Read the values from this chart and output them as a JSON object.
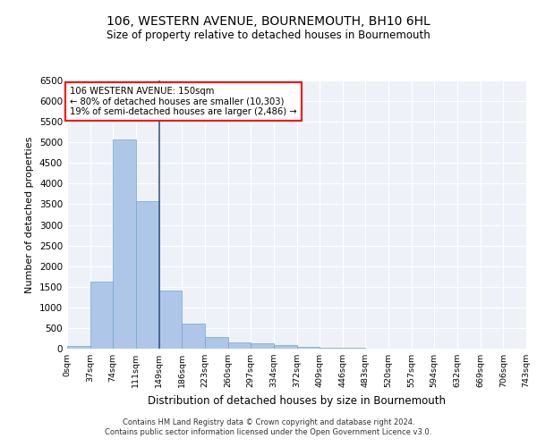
{
  "title": "106, WESTERN AVENUE, BOURNEMOUTH, BH10 6HL",
  "subtitle": "Size of property relative to detached houses in Bournemouth",
  "xlabel": "Distribution of detached houses by size in Bournemouth",
  "ylabel": "Number of detached properties",
  "bar_values": [
    60,
    1620,
    5080,
    3580,
    1400,
    600,
    290,
    150,
    120,
    90,
    50,
    30,
    20,
    5,
    2,
    1,
    0,
    0,
    0,
    0
  ],
  "bin_edges": [
    0,
    37,
    74,
    111,
    149,
    186,
    223,
    260,
    297,
    334,
    372,
    409,
    446,
    483,
    520,
    557,
    594,
    632,
    669,
    706,
    743
  ],
  "xtick_labels": [
    "0sqm",
    "37sqm",
    "74sqm",
    "111sqm",
    "149sqm",
    "186sqm",
    "223sqm",
    "260sqm",
    "297sqm",
    "334sqm",
    "372sqm",
    "409sqm",
    "446sqm",
    "483sqm",
    "520sqm",
    "557sqm",
    "594sqm",
    "632sqm",
    "669sqm",
    "706sqm",
    "743sqm"
  ],
  "bar_color": "#aec6e8",
  "bar_edge_color": "#6fa8d0",
  "vline_x": 149,
  "vline_color": "#3a5a8c",
  "annotation_text": "106 WESTERN AVENUE: 150sqm\n← 80% of detached houses are smaller (10,303)\n19% of semi-detached houses are larger (2,486) →",
  "annotation_box_color": "white",
  "annotation_box_edge": "red",
  "ylim": [
    0,
    6500
  ],
  "yticks": [
    0,
    500,
    1000,
    1500,
    2000,
    2500,
    3000,
    3500,
    4000,
    4500,
    5000,
    5500,
    6000,
    6500
  ],
  "bg_color": "#eef2f8",
  "grid_color": "white",
  "footer_line1": "Contains HM Land Registry data © Crown copyright and database right 2024.",
  "footer_line2": "Contains public sector information licensed under the Open Government Licence v3.0."
}
